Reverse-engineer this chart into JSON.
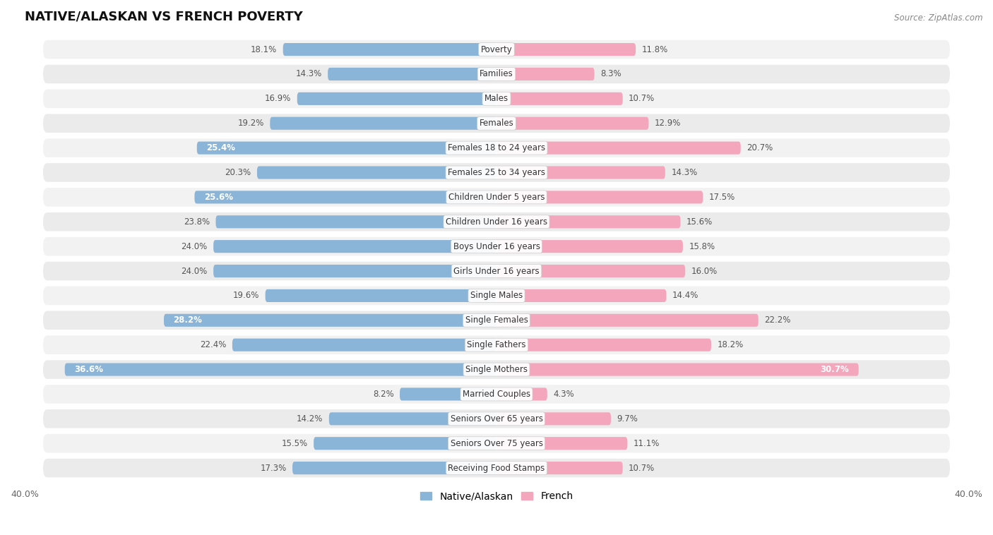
{
  "title": "NATIVE/ALASKAN VS FRENCH POVERTY",
  "source": "Source: ZipAtlas.com",
  "categories": [
    "Poverty",
    "Families",
    "Males",
    "Females",
    "Females 18 to 24 years",
    "Females 25 to 34 years",
    "Children Under 5 years",
    "Children Under 16 years",
    "Boys Under 16 years",
    "Girls Under 16 years",
    "Single Males",
    "Single Females",
    "Single Fathers",
    "Single Mothers",
    "Married Couples",
    "Seniors Over 65 years",
    "Seniors Over 75 years",
    "Receiving Food Stamps"
  ],
  "native_values": [
    18.1,
    14.3,
    16.9,
    19.2,
    25.4,
    20.3,
    25.6,
    23.8,
    24.0,
    24.0,
    19.6,
    28.2,
    22.4,
    36.6,
    8.2,
    14.2,
    15.5,
    17.3
  ],
  "french_values": [
    11.8,
    8.3,
    10.7,
    12.9,
    20.7,
    14.3,
    17.5,
    15.6,
    15.8,
    16.0,
    14.4,
    22.2,
    18.2,
    30.7,
    4.3,
    9.7,
    11.1,
    10.7
  ],
  "native_color": "#8ab4d8",
  "french_color": "#f4a7bc",
  "native_label": "Native/Alaskan",
  "french_label": "French",
  "axis_max": 40.0,
  "bar_height": 0.52,
  "row_bg_light": "#f2f2f2",
  "row_bg_dark": "#e8e8e8",
  "inside_label_threshold": 25.0,
  "title_fontsize": 13,
  "category_fontsize": 8.5,
  "value_fontsize": 8.5,
  "axis_tick_fontsize": 9.0,
  "legend_fontsize": 10
}
